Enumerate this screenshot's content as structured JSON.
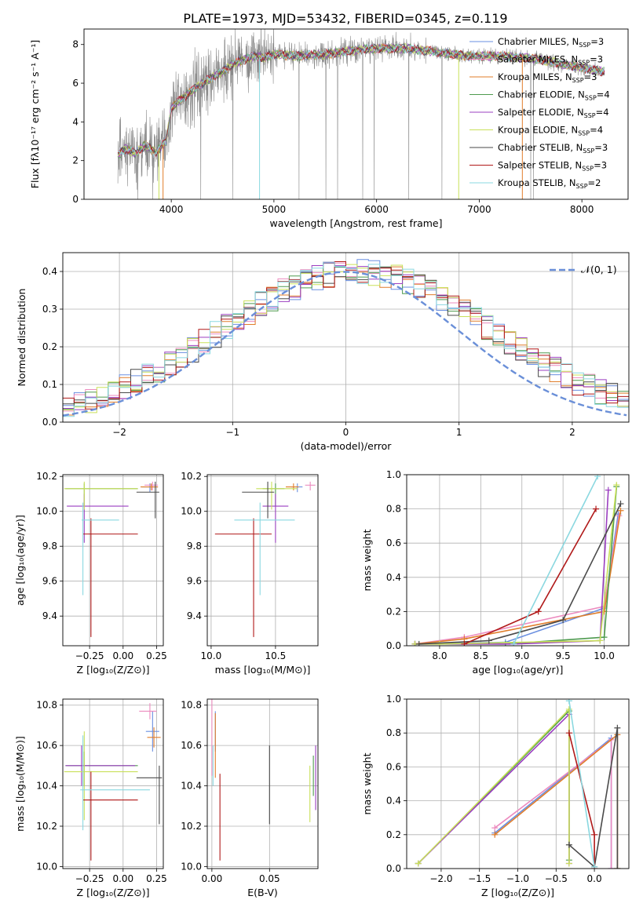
{
  "figure_title": "PLATE=1973, MJD=53432, FIBERID=0345, z=0.119",
  "colors": {
    "c_miles": "#6a8fe0",
    "s_miles": "#ec8bbf",
    "k_miles": "#e07d2a",
    "c_elodie": "#4e9a4e",
    "s_elodie": "#9b3fc0",
    "k_elodie": "#c9e05a",
    "c_stelib": "#4a4a4a",
    "s_stelib": "#b01818",
    "k_stelib": "#8ad8e0",
    "gauss": "#6a8fd8",
    "data": "#8a8a8a"
  },
  "legend_entries": [
    {
      "key": "c_miles",
      "label": "Chabrier MILES, N",
      "sub": "SSP",
      "tail": "=3"
    },
    {
      "key": "s_miles",
      "label": "Salpeter MILES, N",
      "sub": "SSP",
      "tail": "=3"
    },
    {
      "key": "k_miles",
      "label": "Kroupa MILES, N",
      "sub": "SSP",
      "tail": "=3"
    },
    {
      "key": "c_elodie",
      "label": "Chabrier ELODIE, N",
      "sub": "SSP",
      "tail": "=4"
    },
    {
      "key": "s_elodie",
      "label": "Salpeter ELODIE, N",
      "sub": "SSP",
      "tail": "=4"
    },
    {
      "key": "k_elodie",
      "label": "Kroupa ELODIE, N",
      "sub": "SSP",
      "tail": "=4"
    },
    {
      "key": "c_stelib",
      "label": "Chabrier STELIB, N",
      "sub": "SSP",
      "tail": "=3"
    },
    {
      "key": "s_stelib",
      "label": "Salpeter STELIB, N",
      "sub": "SSP",
      "tail": "=3"
    },
    {
      "key": "k_stelib",
      "label": "Kroupa STELIB, N",
      "sub": "SSP",
      "tail": "=2"
    }
  ],
  "chart_data": [
    {
      "id": "spectrum",
      "type": "line",
      "xlabel": "wavelength [Angstrom, rest frame]",
      "ylabel": "Flux [fλ10⁻¹⁷ erg cm⁻² s⁻¹ A⁻¹]",
      "xlim": [
        3150,
        8450
      ],
      "ylim": [
        0,
        8.8
      ],
      "xticks": [
        4000,
        5000,
        6000,
        7000,
        8000
      ],
      "yticks": [
        0,
        2,
        4,
        6,
        8
      ],
      "x_range": [
        3480,
        8220
      ],
      "model_shape_x": [
        3480,
        3550,
        3650,
        3750,
        3850,
        3950,
        4000,
        4100,
        4200,
        4300,
        4400,
        4500,
        4600,
        4700,
        4800,
        4900,
        5000,
        5200,
        5500,
        5800,
        6000,
        6300,
        6600,
        6900,
        7200,
        7500,
        7800,
        8000,
        8220
      ],
      "model_shape_y": [
        2.3,
        2.6,
        2.4,
        2.8,
        2.4,
        3.0,
        4.7,
        5.2,
        5.6,
        6.0,
        6.3,
        6.6,
        7.0,
        7.2,
        7.4,
        7.3,
        7.5,
        7.4,
        7.5,
        7.7,
        7.8,
        7.8,
        7.6,
        7.4,
        7.4,
        7.3,
        7.0,
        6.8,
        6.6
      ]
    },
    {
      "id": "residual_hist",
      "type": "step",
      "xlabel": "(data-model)/error",
      "ylabel": "Normed distribution",
      "xlim": [
        -2.5,
        2.5
      ],
      "ylim": [
        0,
        0.45
      ],
      "xticks": [
        -2,
        -1,
        0,
        1,
        2
      ],
      "xtick_labels": [
        "−2",
        "−1",
        "0",
        "1",
        "2"
      ],
      "yticks": [
        0.0,
        0.1,
        0.2,
        0.3,
        0.4
      ],
      "ytick_labels": [
        "0.0",
        "0.1",
        "0.2",
        "0.3",
        "0.4"
      ],
      "gauss_label": "𝒩(0, 1)",
      "gauss_mu": 0,
      "gauss_sigma": 1,
      "bin_width": 0.1
    },
    {
      "id": "age_vs_Z",
      "type": "errorbar",
      "xlabel": "Z [log₁₀(Z/Z⊙)]",
      "ylabel": "age  [log₁₀(age/yr)]",
      "xlim": [
        -0.45,
        0.3
      ],
      "ylim": [
        9.23,
        10.21
      ],
      "xticks": [
        -0.25,
        0.0,
        0.25
      ],
      "xtick_labels": [
        "−0.25",
        "0.00",
        "0.25"
      ],
      "yticks": [
        9.4,
        9.6,
        9.8,
        10.0,
        10.2
      ],
      "ytick_labels": [
        "9.4",
        "9.6",
        "9.8",
        "10.0",
        "10.2"
      ],
      "points": [
        {
          "key": "c_miles",
          "x": 0.2,
          "y": 10.14,
          "xe": [
            0.06,
            0.06
          ],
          "ye": [
            0.03,
            0.02
          ]
        },
        {
          "key": "s_miles",
          "x": 0.22,
          "y": 10.15,
          "xe": [
            0.06,
            0.04
          ],
          "ye": [
            0.03,
            0.02
          ]
        },
        {
          "key": "k_miles",
          "x": 0.21,
          "y": 10.14,
          "xe": [
            0.08,
            0.05
          ],
          "ye": [
            0.02,
            0.02
          ]
        },
        {
          "key": "c_elodie",
          "x": -0.29,
          "y": 10.13,
          "xe": [
            0.14,
            0.4
          ],
          "ye": [
            0.1,
            0.03
          ]
        },
        {
          "key": "s_elodie",
          "x": -0.29,
          "y": 10.03,
          "xe": [
            0.13,
            0.33
          ],
          "ye": [
            0.21,
            0.07
          ]
        },
        {
          "key": "k_elodie",
          "x": -0.29,
          "y": 10.13,
          "xe": [
            0.15,
            0.4
          ],
          "ye": [
            0.12,
            0.04
          ]
        },
        {
          "key": "c_stelib",
          "x": 0.24,
          "y": 10.11,
          "xe": [
            0.14,
            0.03
          ],
          "ye": [
            0.15,
            0.06
          ]
        },
        {
          "key": "s_stelib",
          "x": -0.24,
          "y": 9.87,
          "xe": [
            0.06,
            0.35
          ],
          "ye": [
            0.59,
            0.09
          ]
        },
        {
          "key": "k_stelib",
          "x": -0.3,
          "y": 9.95,
          "xe": [
            0.01,
            0.27
          ],
          "ye": [
            0.43,
            0.1
          ]
        }
      ]
    },
    {
      "id": "age_vs_mass",
      "type": "errorbar",
      "xlabel": "mass [log₁₀(M/M⊙)]",
      "ylabel": "",
      "xlim": [
        9.97,
        10.83
      ],
      "ylim": [
        9.23,
        10.21
      ],
      "xticks": [
        10.0,
        10.5
      ],
      "xtick_labels": [
        "10.0",
        "10.5"
      ],
      "yticks": [
        9.4,
        9.6,
        9.8,
        10.0,
        10.2
      ],
      "ytick_labels": [
        "9.4",
        "9.6",
        "9.8",
        "10.0",
        "10.2"
      ],
      "points": [
        {
          "key": "c_miles",
          "x": 10.67,
          "y": 10.14,
          "xe": [
            0.05,
            0.04
          ],
          "ye": [
            0.03,
            0.02
          ]
        },
        {
          "key": "s_miles",
          "x": 10.77,
          "y": 10.15,
          "xe": [
            0.04,
            0.04
          ],
          "ye": [
            0.03,
            0.02
          ]
        },
        {
          "key": "k_miles",
          "x": 10.64,
          "y": 10.14,
          "xe": [
            0.06,
            0.04
          ],
          "ye": [
            0.02,
            0.02
          ]
        },
        {
          "key": "c_elodie",
          "x": 10.5,
          "y": 10.13,
          "xe": [
            0.1,
            0.07
          ],
          "ye": [
            0.1,
            0.03
          ]
        },
        {
          "key": "s_elodie",
          "x": 10.5,
          "y": 10.03,
          "xe": [
            0.1,
            0.1
          ],
          "ye": [
            0.21,
            0.07
          ]
        },
        {
          "key": "k_elodie",
          "x": 10.47,
          "y": 10.13,
          "xe": [
            0.12,
            0.2
          ],
          "ye": [
            0.12,
            0.04
          ]
        },
        {
          "key": "c_stelib",
          "x": 10.44,
          "y": 10.11,
          "xe": [
            0.2,
            0.05
          ],
          "ye": [
            0.15,
            0.06
          ]
        },
        {
          "key": "s_stelib",
          "x": 10.33,
          "y": 9.87,
          "xe": [
            0.3,
            0.14
          ],
          "ye": [
            0.59,
            0.09
          ]
        },
        {
          "key": "k_stelib",
          "x": 10.38,
          "y": 9.95,
          "xe": [
            0.2,
            0.27
          ],
          "ye": [
            0.43,
            0.1
          ]
        }
      ]
    },
    {
      "id": "mass_weight_vs_age",
      "type": "line",
      "xlabel": "age  [log₁₀(age/yr)]",
      "ylabel": "mass weight",
      "xlim": [
        7.6,
        10.3
      ],
      "ylim": [
        0,
        1
      ],
      "xticks": [
        8.0,
        8.5,
        9.0,
        9.5,
        10.0
      ],
      "xtick_labels": [
        "8.0",
        "8.5",
        "9.0",
        "9.5",
        "10.0"
      ],
      "yticks": [
        0.0,
        0.2,
        0.4,
        0.6,
        0.8,
        1.0
      ],
      "ytick_labels": [
        "0.0",
        "0.2",
        "0.4",
        "0.6",
        "0.8",
        "1.0"
      ],
      "series": [
        {
          "key": "c_miles",
          "x": [
            7.7,
            8.8,
            10.0,
            10.17
          ],
          "y": [
            0.01,
            0.02,
            0.22,
            0.77
          ]
        },
        {
          "key": "s_miles",
          "x": [
            7.7,
            8.3,
            10.0,
            10.18
          ],
          "y": [
            0.01,
            0.05,
            0.23,
            0.76
          ]
        },
        {
          "key": "k_miles",
          "x": [
            7.7,
            8.3,
            10.0,
            10.2
          ],
          "y": [
            0.01,
            0.04,
            0.2,
            0.79
          ]
        },
        {
          "key": "c_elodie",
          "x": [
            7.7,
            8.8,
            10.0,
            10.15
          ],
          "y": [
            0.01,
            0.01,
            0.05,
            0.93
          ]
        },
        {
          "key": "s_elodie",
          "x": [
            7.7,
            8.9,
            9.95,
            10.05
          ],
          "y": [
            0.01,
            0.01,
            0.03,
            0.91
          ]
        },
        {
          "key": "k_elodie",
          "x": [
            7.7,
            8.0,
            9.95,
            10.15
          ],
          "y": [
            0.01,
            0.01,
            0.03,
            0.94
          ]
        },
        {
          "key": "c_stelib",
          "x": [
            7.75,
            8.6,
            9.5,
            10.2
          ],
          "y": [
            0.01,
            0.03,
            0.15,
            0.83
          ]
        },
        {
          "key": "s_stelib",
          "x": [
            8.3,
            9.2,
            9.9
          ],
          "y": [
            0.01,
            0.2,
            0.8
          ]
        },
        {
          "key": "k_stelib",
          "x": [
            8.9,
            9.92
          ],
          "y": [
            0.01,
            0.99
          ]
        }
      ]
    },
    {
      "id": "mass_vs_Z",
      "type": "errorbar",
      "xlabel": "Z [log₁₀(Z/Z⊙)]",
      "ylabel": "mass [log₁₀(M/M⊙)]",
      "xlim": [
        -0.45,
        0.3
      ],
      "ylim": [
        9.99,
        10.83
      ],
      "xticks": [
        -0.25,
        0.0,
        0.25
      ],
      "xtick_labels": [
        "−0.25",
        "0.00",
        "0.25"
      ],
      "yticks": [
        10.0,
        10.2,
        10.4,
        10.6,
        10.8
      ],
      "ytick_labels": [
        "10.0",
        "10.2",
        "10.4",
        "10.6",
        "10.8"
      ],
      "points": [
        {
          "key": "c_miles",
          "x": 0.22,
          "y": 10.67,
          "xe": [
            0.05,
            0.05
          ],
          "ye": [
            0.1,
            0.1
          ]
        },
        {
          "key": "s_miles",
          "x": 0.2,
          "y": 10.77,
          "xe": [
            0.08,
            0.05
          ],
          "ye": [
            0.04,
            0.04
          ]
        },
        {
          "key": "k_miles",
          "x": 0.23,
          "y": 10.64,
          "xe": [
            0.05,
            0.05
          ],
          "ye": [
            0.05,
            0.05
          ]
        },
        {
          "key": "c_elodie",
          "x": -0.29,
          "y": 10.5,
          "xe": [
            0.14,
            0.4
          ],
          "ye": [
            0.1,
            0.07
          ]
        },
        {
          "key": "s_elodie",
          "x": -0.31,
          "y": 10.5,
          "xe": [
            0.12,
            0.4
          ],
          "ye": [
            0.1,
            0.1
          ]
        },
        {
          "key": "k_elodie",
          "x": -0.29,
          "y": 10.47,
          "xe": [
            0.15,
            0.4
          ],
          "ye": [
            0.24,
            0.2
          ]
        },
        {
          "key": "c_stelib",
          "x": 0.27,
          "y": 10.44,
          "xe": [
            0.17,
            0.02
          ],
          "ye": [
            0.23,
            0.06
          ]
        },
        {
          "key": "s_stelib",
          "x": -0.24,
          "y": 10.33,
          "xe": [
            0.06,
            0.35
          ],
          "ye": [
            0.3,
            0.14
          ]
        },
        {
          "key": "k_stelib",
          "x": -0.3,
          "y": 10.38,
          "xe": [
            0.02,
            0.5
          ],
          "ye": [
            0.2,
            0.27
          ]
        }
      ]
    },
    {
      "id": "mass_vs_EBV",
      "type": "errorbar",
      "xlabel": "E(B-V)",
      "ylabel": "",
      "xlim": [
        -0.004,
        0.092
      ],
      "ylim": [
        9.99,
        10.83
      ],
      "xticks": [
        0.0,
        0.05
      ],
      "xtick_labels": [
        "0.00",
        "0.05"
      ],
      "yticks": [
        10.0,
        10.2,
        10.4,
        10.6,
        10.8
      ],
      "ytick_labels": [
        "10.0",
        "10.2",
        "10.4",
        "10.6",
        "10.8"
      ],
      "points": [
        {
          "key": "c_miles",
          "x": 0.003,
          "y": 10.67,
          "xe": [
            0,
            0
          ],
          "ye": [
            0.1,
            0.1
          ]
        },
        {
          "key": "s_miles",
          "x": 0.0,
          "y": 10.75,
          "xe": [
            0,
            0
          ],
          "ye": [
            0.3,
            0.08
          ]
        },
        {
          "key": "k_miles",
          "x": 0.003,
          "y": 10.64,
          "xe": [
            0,
            0
          ],
          "ye": [
            0.2,
            0.12
          ]
        },
        {
          "key": "c_elodie",
          "x": 0.088,
          "y": 10.45,
          "xe": [
            0,
            0
          ],
          "ye": [
            0.1,
            0.1
          ]
        },
        {
          "key": "s_elodie",
          "x": 0.09,
          "y": 10.45,
          "xe": [
            0,
            0
          ],
          "ye": [
            0.17,
            0.15
          ]
        },
        {
          "key": "k_elodie",
          "x": 0.085,
          "y": 10.38,
          "xe": [
            0,
            0
          ],
          "ye": [
            0.16,
            0.12
          ]
        },
        {
          "key": "c_stelib",
          "x": 0.05,
          "y": 10.44,
          "xe": [
            0,
            0
          ],
          "ye": [
            0.23,
            0.16
          ]
        },
        {
          "key": "s_stelib",
          "x": 0.007,
          "y": 10.25,
          "xe": [
            0,
            0
          ],
          "ye": [
            0.22,
            0.21
          ]
        },
        {
          "key": "k_stelib",
          "x": 0.001,
          "y": 10.5,
          "xe": [
            0,
            0
          ],
          "ye": [
            0.1,
            0.1
          ]
        }
      ]
    },
    {
      "id": "mass_weight_vs_Z",
      "type": "line",
      "xlabel": "Z [log₁₀(Z/Z⊙)]",
      "ylabel": "mass weight",
      "xlim": [
        -2.45,
        0.45
      ],
      "ylim": [
        0,
        1
      ],
      "xticks": [
        -2.0,
        -1.5,
        -1.0,
        -0.5,
        0.0
      ],
      "xtick_labels": [
        "−2.0",
        "−1.5",
        "−1.0",
        "−0.5",
        "0.0"
      ],
      "yticks": [
        0.0,
        0.2,
        0.4,
        0.6,
        0.8,
        1.0
      ],
      "ytick_labels": [
        "0.0",
        "0.2",
        "0.4",
        "0.6",
        "0.8",
        "1.0"
      ],
      "series": [
        {
          "key": "c_miles",
          "x": [
            -1.3,
            0.22,
            0.22
          ],
          "y": [
            0.21,
            0.77,
            0.0
          ]
        },
        {
          "key": "s_miles",
          "x": [
            -1.3,
            0.22,
            0.22
          ],
          "y": [
            0.24,
            0.76,
            0.0
          ]
        },
        {
          "key": "k_miles",
          "x": [
            -1.3,
            0.3,
            0.3
          ],
          "y": [
            0.2,
            0.79,
            0.0
          ]
        },
        {
          "key": "c_elodie",
          "x": [
            -2.3,
            -0.33,
            -0.33
          ],
          "y": [
            0.03,
            0.93,
            0.05
          ]
        },
        {
          "key": "s_elodie",
          "x": [
            -2.3,
            -0.33,
            -0.33
          ],
          "y": [
            0.03,
            0.91,
            0.03
          ]
        },
        {
          "key": "k_elodie",
          "x": [
            -2.3,
            -0.33,
            -0.33
          ],
          "y": [
            0.03,
            0.94,
            0.03
          ]
        },
        {
          "key": "c_stelib",
          "x": [
            -0.33,
            0.0,
            0.3,
            0.3
          ],
          "y": [
            0.14,
            0.01,
            0.83,
            0.0
          ]
        },
        {
          "key": "s_stelib",
          "x": [
            -0.33,
            0.0,
            0.0
          ],
          "y": [
            0.8,
            0.2,
            0.0
          ]
        },
        {
          "key": "k_stelib",
          "x": [
            -0.33,
            -0.33,
            0.0
          ],
          "y": [
            0.99,
            0.99,
            0.01
          ]
        }
      ]
    }
  ]
}
